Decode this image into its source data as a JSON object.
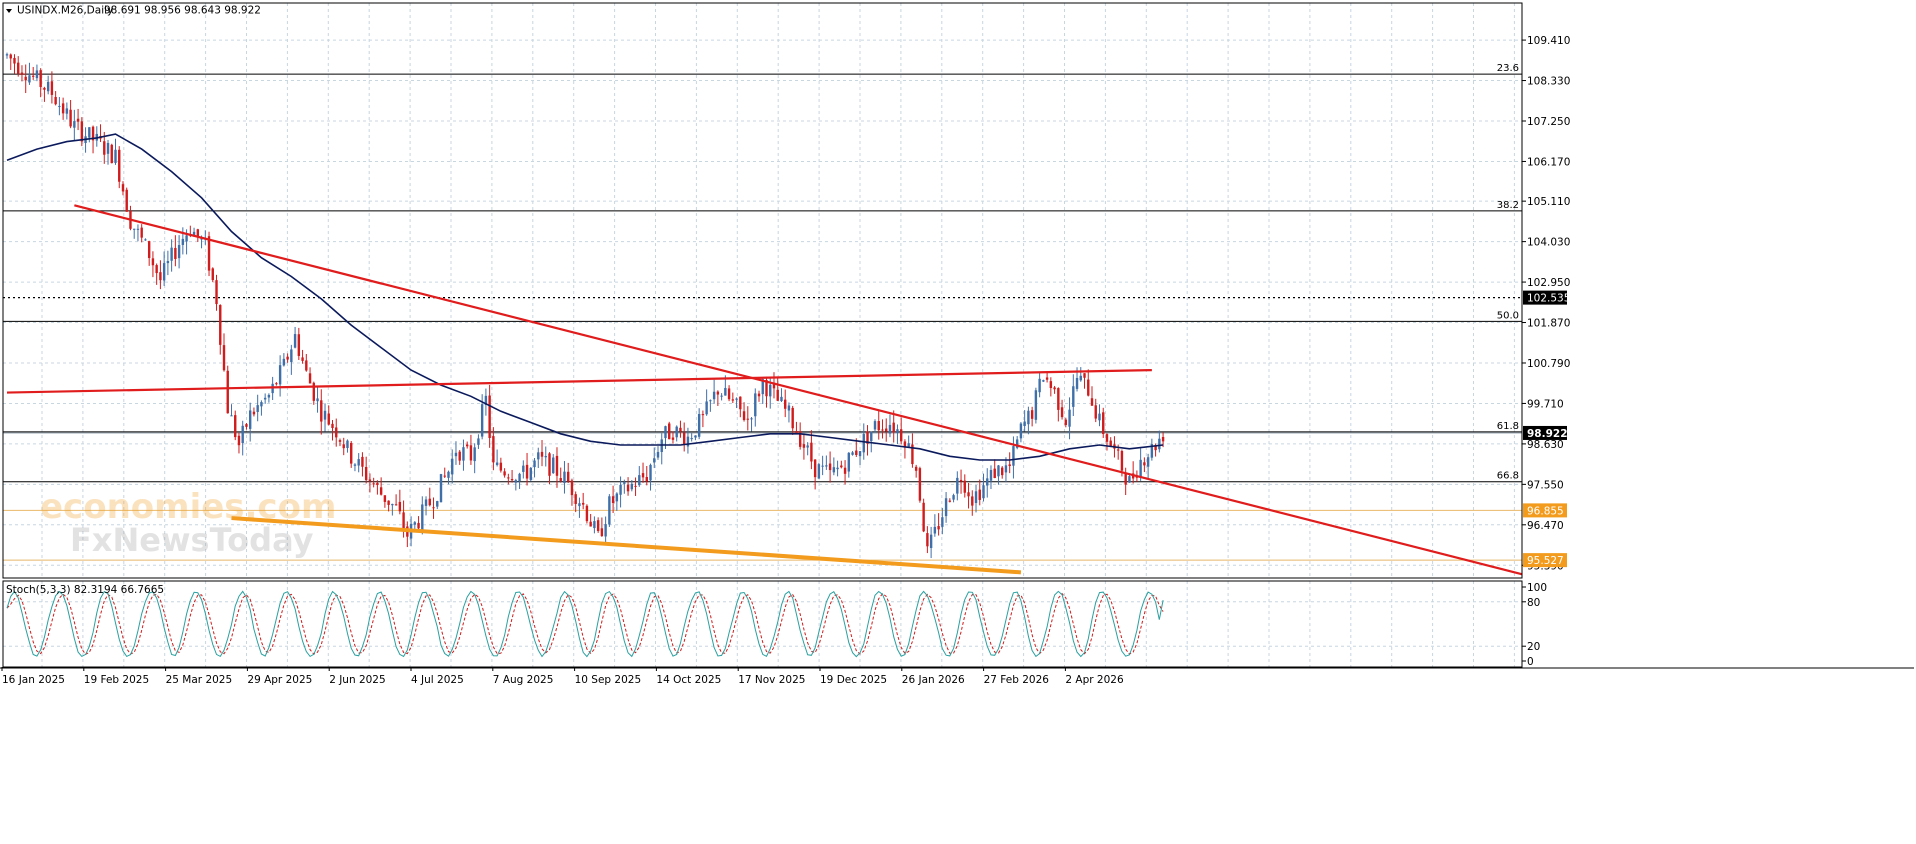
{
  "header": {
    "title": "USINDX.M26,Daily",
    "ohlc": "98.691 98.956 98.643 98.922"
  },
  "watermark": {
    "line1": "economies.com",
    "line2": "FxNewsToday"
  },
  "colors": {
    "background": "#ffffff",
    "grid": "#c8d6e0",
    "bull_candle": "#3f6fa8",
    "bear_candle": "#d01c1c",
    "moving_average": "#0b1a5c",
    "trendline": "#e01c1c",
    "support_line": "#f39b1c",
    "fib_line": "#000000",
    "stoch_main": "#2aa0a0",
    "stoch_signal": "#d01c1c"
  },
  "chart_data": [
    {
      "type": "candlestick",
      "symbol": "USINDX.M26",
      "timeframe": "Daily",
      "last_ohlc": {
        "open": 98.691,
        "high": 98.956,
        "low": 98.643,
        "close": 98.922
      },
      "y_ticks": [
        "109.410",
        "108.330",
        "107.250",
        "106.170",
        "105.110",
        "104.030",
        "102.950",
        "101.870",
        "100.790",
        "99.710",
        "98.630",
        "97.550",
        "96.470",
        "95.390"
      ],
      "ylim": [
        95.05,
        110.4
      ],
      "x_ticks": [
        "16 Jan 2025",
        "19 Feb 2025",
        "25 Mar 2025",
        "29 Apr 2025",
        "2 Jun 2025",
        "4 Jul 2025",
        "7 Aug 2025",
        "10 Sep 2025",
        "14 Oct 2025",
        "17 Nov 2025",
        "19 Dec 2025",
        "26 Jan 2026",
        "27 Feb 2026",
        "2 Apr 2026"
      ],
      "approx_path": [
        [
          0,
          109.0
        ],
        [
          6,
          108.5
        ],
        [
          12,
          108.0
        ],
        [
          18,
          107.1
        ],
        [
          24,
          106.7
        ],
        [
          29,
          106.3
        ],
        [
          33,
          104.6
        ],
        [
          38,
          103.7
        ],
        [
          41,
          103.0
        ],
        [
          46,
          104.0
        ],
        [
          49,
          104.4
        ],
        [
          53,
          103.9
        ],
        [
          56,
          102.5
        ],
        [
          59,
          99.6
        ],
        [
          62,
          98.6
        ],
        [
          65,
          99.4
        ],
        [
          70,
          99.9
        ],
        [
          74,
          100.7
        ],
        [
          77,
          101.5
        ],
        [
          80,
          100.5
        ],
        [
          84,
          99.5
        ],
        [
          88,
          99.0
        ],
        [
          92,
          98.3
        ],
        [
          96,
          97.8
        ],
        [
          100,
          97.3
        ],
        [
          104,
          96.9
        ],
        [
          107,
          96.2
        ],
        [
          110,
          96.6
        ],
        [
          114,
          97.2
        ],
        [
          118,
          97.9
        ],
        [
          120,
          98.5
        ],
        [
          124,
          98.3
        ],
        [
          128,
          99.8
        ],
        [
          130,
          98.0
        ],
        [
          134,
          97.9
        ],
        [
          138,
          97.8
        ],
        [
          142,
          98.2
        ],
        [
          146,
          98.0
        ],
        [
          150,
          97.6
        ],
        [
          154,
          97.0
        ],
        [
          158,
          96.1
        ],
        [
          161,
          97.0
        ],
        [
          164,
          97.3
        ],
        [
          168,
          97.6
        ],
        [
          171,
          97.8
        ],
        [
          175,
          98.8
        ],
        [
          178,
          99.0
        ],
        [
          182,
          98.8
        ],
        [
          186,
          99.3
        ],
        [
          190,
          100.1
        ],
        [
          194,
          99.7
        ],
        [
          198,
          99.3
        ],
        [
          202,
          100.3
        ],
        [
          205,
          99.9
        ],
        [
          209,
          99.4
        ],
        [
          213,
          98.6
        ],
        [
          216,
          98.0
        ],
        [
          220,
          97.8
        ],
        [
          224,
          98.1
        ],
        [
          228,
          98.6
        ],
        [
          232,
          99.1
        ],
        [
          236,
          99.2
        ],
        [
          240,
          98.8
        ],
        [
          243,
          98.0
        ],
        [
          246,
          95.7
        ],
        [
          249,
          96.5
        ],
        [
          252,
          97.3
        ],
        [
          255,
          97.8
        ],
        [
          258,
          97.2
        ],
        [
          261,
          97.5
        ],
        [
          264,
          97.9
        ],
        [
          268,
          98.0
        ],
        [
          271,
          99.0
        ],
        [
          274,
          99.5
        ],
        [
          277,
          100.5
        ],
        [
          280,
          100.0
        ],
        [
          283,
          99.3
        ],
        [
          286,
          100.4
        ],
        [
          289,
          100.1
        ],
        [
          292,
          99.2
        ],
        [
          294,
          98.8
        ],
        [
          297,
          98.2
        ],
        [
          300,
          97.6
        ],
        [
          303,
          98.2
        ],
        [
          306,
          98.5
        ],
        [
          309,
          98.9
        ]
      ],
      "moving_average": [
        [
          0,
          106.2
        ],
        [
          8,
          106.5
        ],
        [
          16,
          106.7
        ],
        [
          24,
          106.8
        ],
        [
          29,
          106.9
        ],
        [
          36,
          106.5
        ],
        [
          44,
          105.9
        ],
        [
          52,
          105.2
        ],
        [
          60,
          104.3
        ],
        [
          68,
          103.6
        ],
        [
          76,
          103.1
        ],
        [
          84,
          102.5
        ],
        [
          92,
          101.8
        ],
        [
          100,
          101.2
        ],
        [
          108,
          100.6
        ],
        [
          116,
          100.2
        ],
        [
          124,
          99.9
        ],
        [
          132,
          99.5
        ],
        [
          140,
          99.2
        ],
        [
          148,
          98.9
        ],
        [
          156,
          98.7
        ],
        [
          164,
          98.6
        ],
        [
          172,
          98.6
        ],
        [
          180,
          98.6
        ],
        [
          188,
          98.7
        ],
        [
          196,
          98.8
        ],
        [
          204,
          98.9
        ],
        [
          212,
          98.9
        ],
        [
          220,
          98.8
        ],
        [
          228,
          98.7
        ],
        [
          236,
          98.6
        ],
        [
          244,
          98.5
        ],
        [
          252,
          98.3
        ],
        [
          260,
          98.2
        ],
        [
          268,
          98.2
        ],
        [
          276,
          98.3
        ],
        [
          284,
          98.5
        ],
        [
          292,
          98.6
        ],
        [
          300,
          98.5
        ],
        [
          309,
          98.6
        ]
      ],
      "fib_levels": [
        {
          "label": "23.6",
          "price": 108.5
        },
        {
          "label": "38.2",
          "price": 104.85
        },
        {
          "label": "50.0",
          "price": 101.9
        },
        {
          "label": "61.8",
          "price": 98.95
        },
        {
          "label": "66.8",
          "price": 97.62
        }
      ],
      "price_markers": [
        {
          "label": "102.535",
          "price": 102.535,
          "style": "dotted"
        },
        {
          "label": "98.922",
          "price": 98.922,
          "style": "current"
        },
        {
          "label": "96.855",
          "price": 96.855,
          "style": "support"
        },
        {
          "label": "95.527",
          "price": 95.527,
          "style": "support"
        }
      ],
      "trendlines": [
        {
          "name": "falling",
          "from": [
            18,
            105.0
          ],
          "to": [
            405,
            95.15
          ]
        },
        {
          "name": "rising",
          "from": [
            0,
            100.0
          ],
          "to": [
            306,
            100.6
          ]
        }
      ],
      "support_line": {
        "from": [
          60,
          96.65
        ],
        "to": [
          271,
          95.2
        ]
      }
    },
    {
      "type": "line",
      "title": "Stoch(5,3,3) 82.3194 66.7665",
      "name": "Stoch(5,3,3)",
      "main_value": 82.3194,
      "signal_value": 66.7665,
      "y_ticks": [
        "100",
        "80",
        "20",
        "0"
      ],
      "ylim": [
        0,
        100
      ]
    }
  ]
}
